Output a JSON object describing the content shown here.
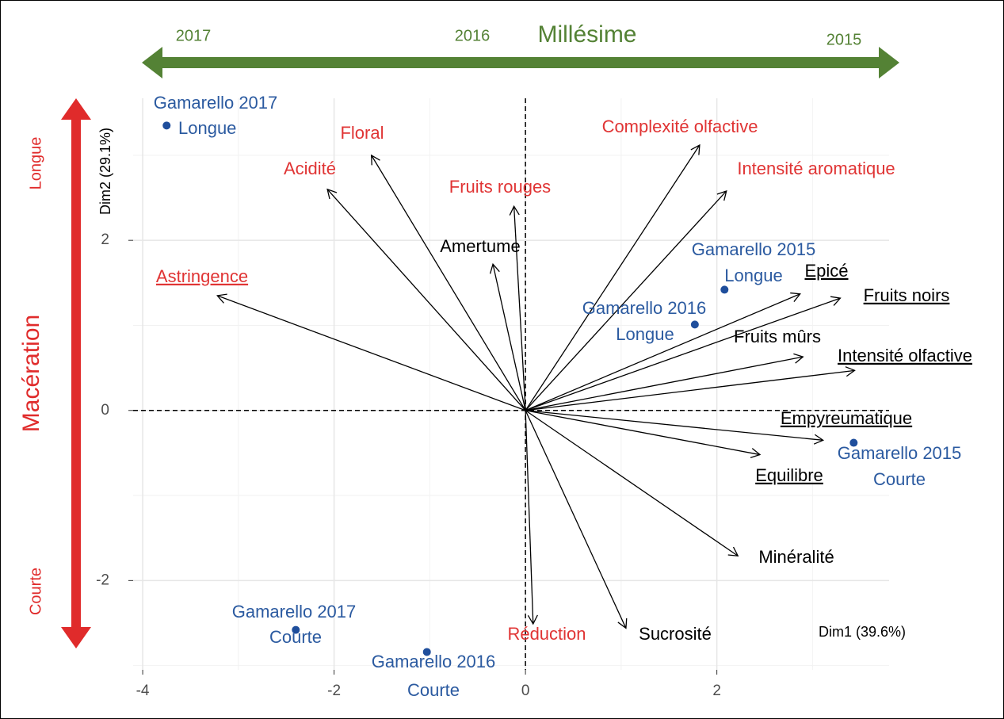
{
  "chart_data": {
    "type": "scatter",
    "x_label": "Dim1 (39.6%)",
    "y_label": "Dim2 (29.1%)",
    "xlim": [
      -4.1,
      3.8
    ],
    "ylim": [
      -3.05,
      3.67
    ],
    "xticks": [
      -4,
      -2,
      0,
      2
    ],
    "yticks": [
      -2,
      0,
      2
    ],
    "minor_xticks": [
      -3,
      -1,
      1,
      3
    ],
    "minor_yticks": [
      -3,
      -1,
      1,
      3
    ],
    "grid": true,
    "variables": {
      "names": [
        "Astringence",
        "Acidité",
        "Floral",
        "Fruits rouges",
        "Amertume",
        "Complexité olfactive",
        "Intensité aromatique",
        "Epicé",
        "Fruits noirs",
        "Fruits mûrs",
        "Intensité olfactive",
        "Empyreumatique",
        "Equilibre",
        "Minéralité",
        "Sucrosité",
        "Réduction"
      ],
      "x": [
        -3.22,
        -2.07,
        -1.61,
        -0.12,
        -0.34,
        1.82,
        2.1,
        2.87,
        3.29,
        2.9,
        3.44,
        3.11,
        2.45,
        2.22,
        1.05,
        0.08
      ],
      "y": [
        1.35,
        2.6,
        3.0,
        2.4,
        1.72,
        3.12,
        2.58,
        1.37,
        1.32,
        0.63,
        0.47,
        -0.35,
        -0.52,
        -1.71,
        -2.56,
        -2.51
      ],
      "colors": [
        "#e03434",
        "#e03434",
        "#e03434",
        "#e03434",
        "#000000",
        "#e03434",
        "#e03434",
        "#000000",
        "#000000",
        "#000000",
        "#000000",
        "#000000",
        "#000000",
        "#000000",
        "#000000",
        "#e03434"
      ],
      "underline": [
        true,
        false,
        false,
        false,
        false,
        false,
        false,
        true,
        true,
        false,
        true,
        true,
        true,
        false,
        false,
        false
      ]
    },
    "individuals": {
      "names": [
        [
          "Gamarello 2017",
          "Longue"
        ],
        [
          "Gamarello 2015",
          "Longue"
        ],
        [
          "Gamarello 2016",
          "Longue"
        ],
        [
          "Gamarello 2015",
          "Courte"
        ],
        [
          "Gamarello 2017",
          "Courte"
        ],
        [
          "Gamarello 2016",
          "Courte"
        ]
      ],
      "x": [
        -3.75,
        2.08,
        1.77,
        3.43,
        -2.4,
        -1.03
      ],
      "y": [
        3.35,
        1.42,
        1.01,
        -0.38,
        -2.58,
        -2.84
      ],
      "color": "#1f4e9c"
    },
    "annotations": {
      "vintage": {
        "title": "Millésime",
        "labels": [
          "2017",
          "2016",
          "2015"
        ],
        "color": "#548235"
      },
      "maceration": {
        "title": "Macération",
        "labels": [
          "Longue",
          "Courte"
        ],
        "color": "#e02b2b"
      }
    }
  }
}
